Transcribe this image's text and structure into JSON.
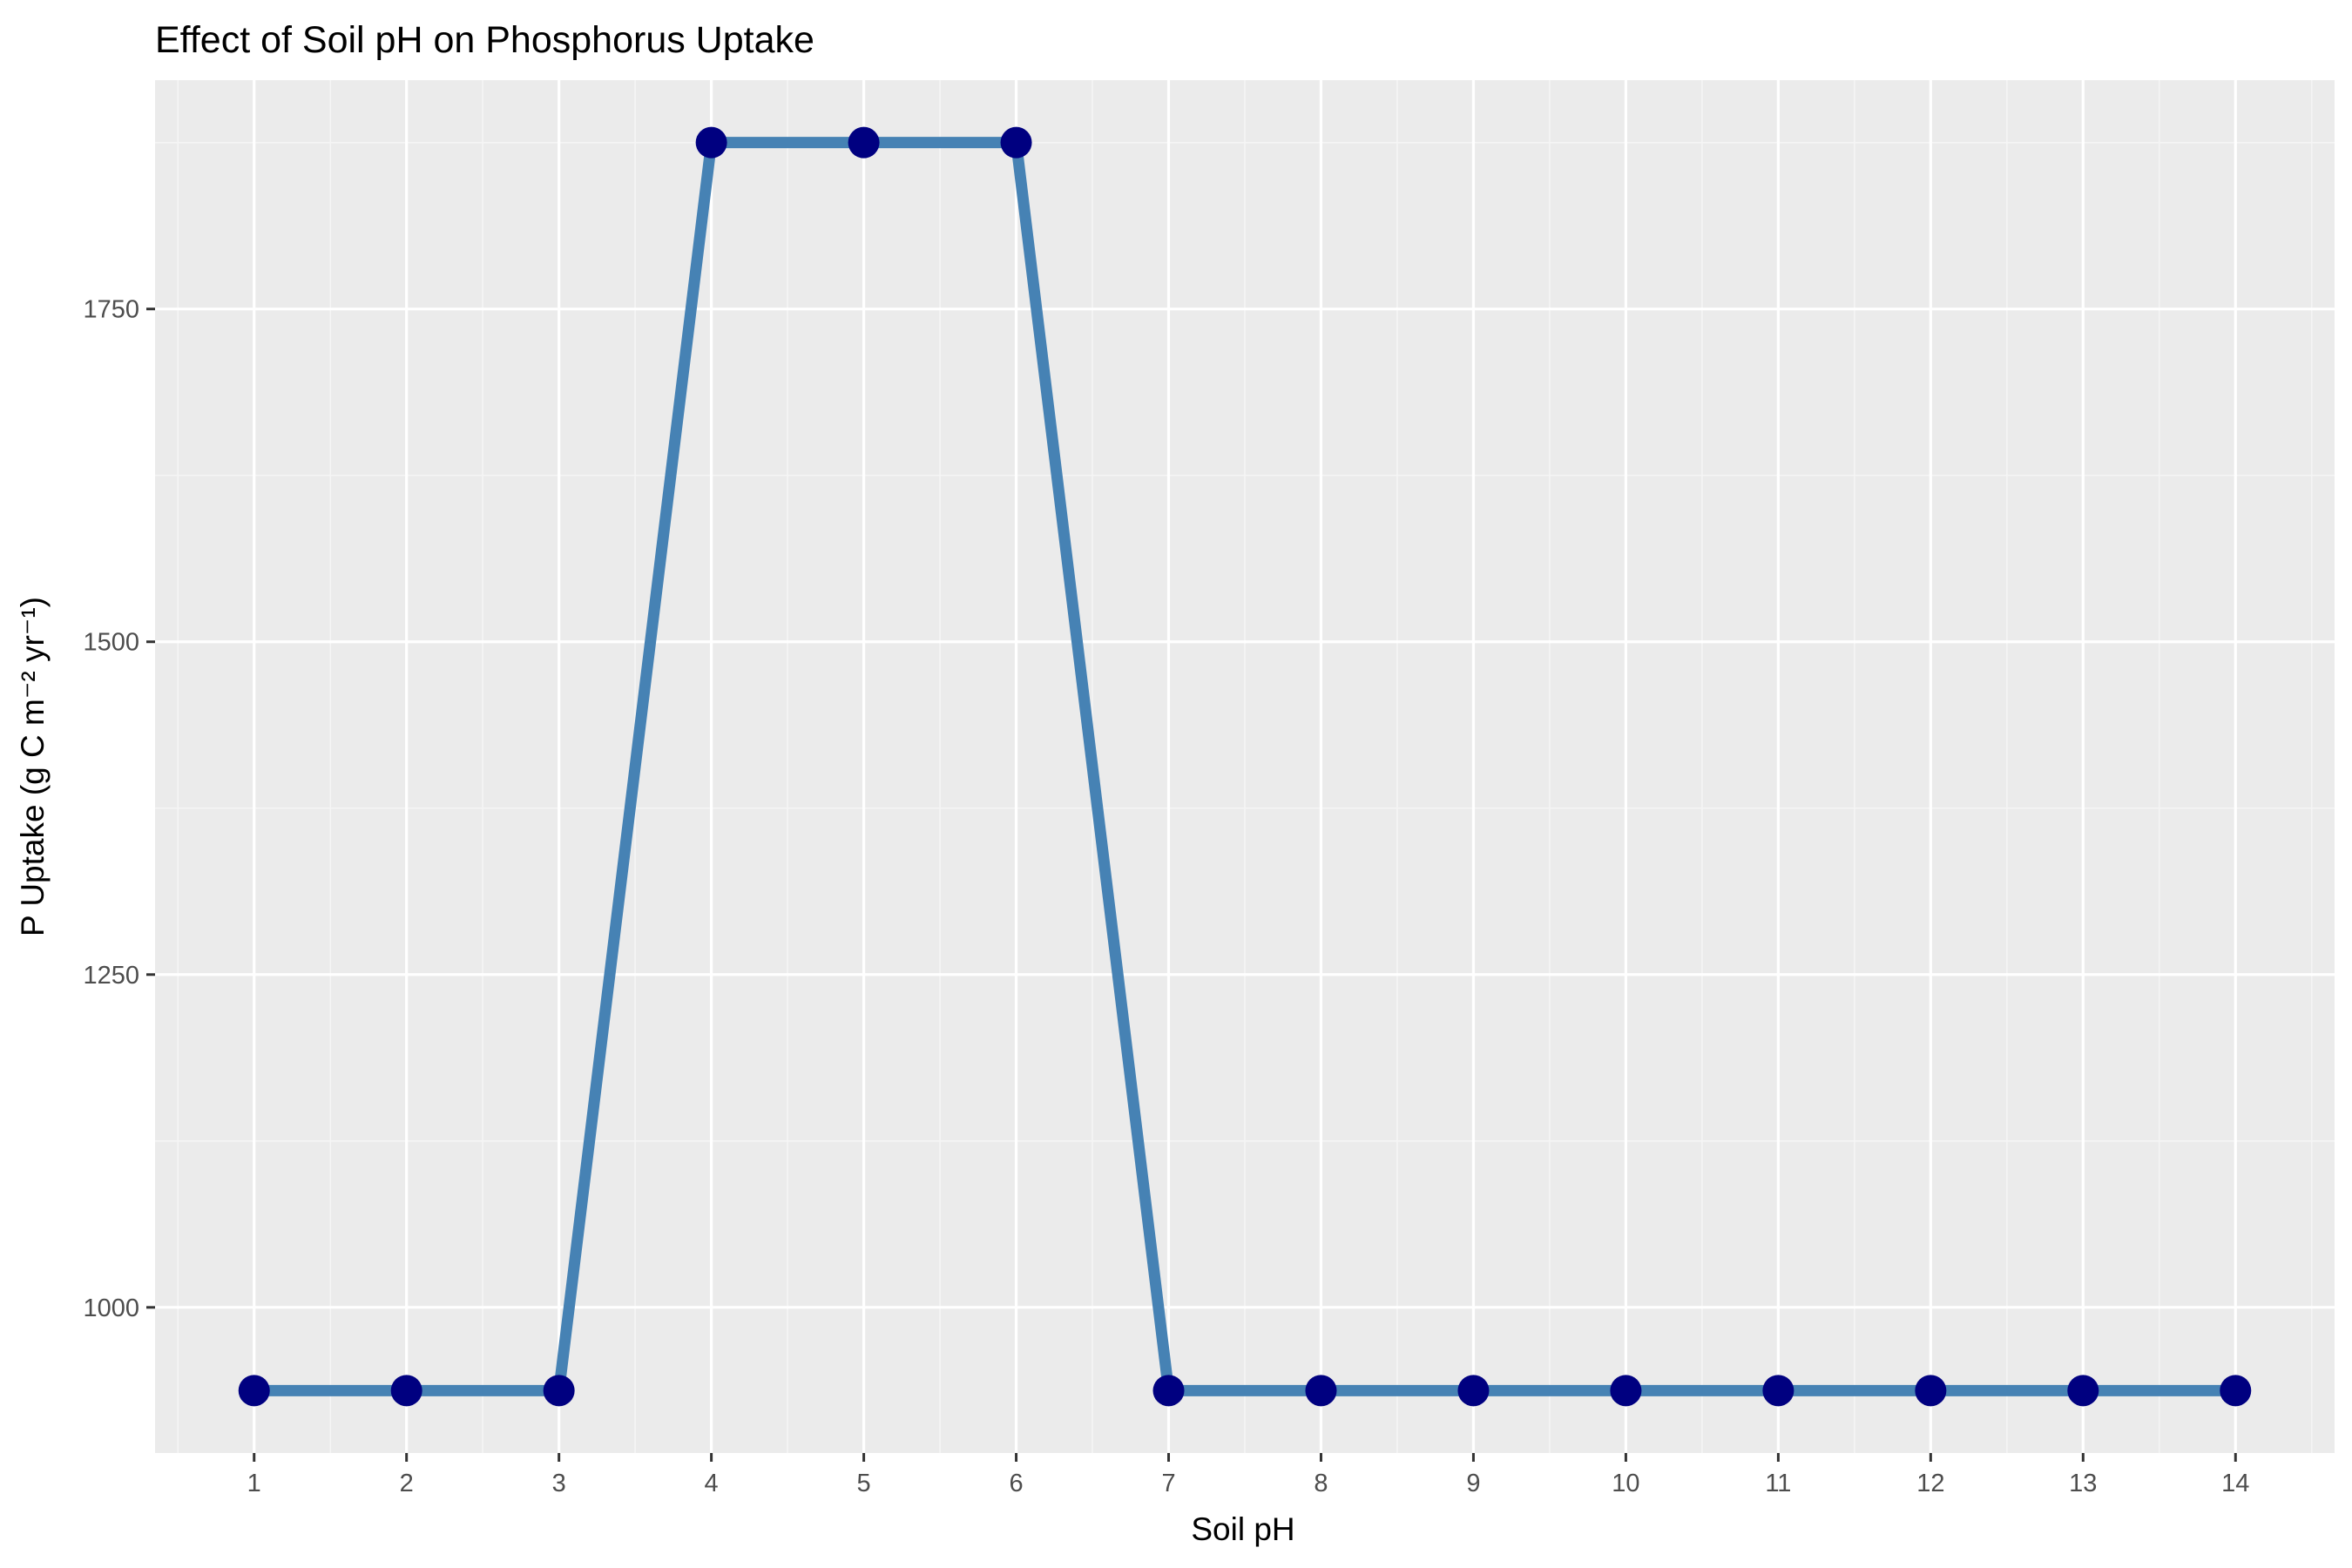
{
  "chart_data": {
    "type": "line",
    "title": "Effect of Soil pH on Phosphorus Uptake",
    "xlabel": "Soil pH",
    "ylabel": "P Uptake (g C m⁻² yr⁻¹)",
    "x": [
      1,
      2,
      3,
      4,
      5,
      6,
      7,
      8,
      9,
      10,
      11,
      12,
      13,
      14
    ],
    "series": [
      {
        "values": [
          937.5,
          937.5,
          937.5,
          1875,
          1875,
          1875,
          937.5,
          937.5,
          937.5,
          937.5,
          937.5,
          937.5,
          937.5,
          937.5
        ]
      }
    ],
    "xticks": [
      "1",
      "2",
      "3",
      "4",
      "5",
      "6",
      "7",
      "8",
      "9",
      "10",
      "11",
      "12",
      "13",
      "14"
    ],
    "yticks": [
      "1000",
      "1250",
      "1500",
      "1750"
    ],
    "xlim": [
      0.35,
      14.65
    ],
    "ylim": [
      890.6,
      1921.9
    ],
    "grid": true,
    "legend": "none",
    "colors": {
      "panel": "#ebebeb",
      "grid_major": "#ffffff",
      "grid_minor": "#f5f5f5",
      "line": "#4682b4",
      "point": "#000080",
      "tick_text": "#4d4d4d",
      "tick_mark": "#333333"
    }
  }
}
